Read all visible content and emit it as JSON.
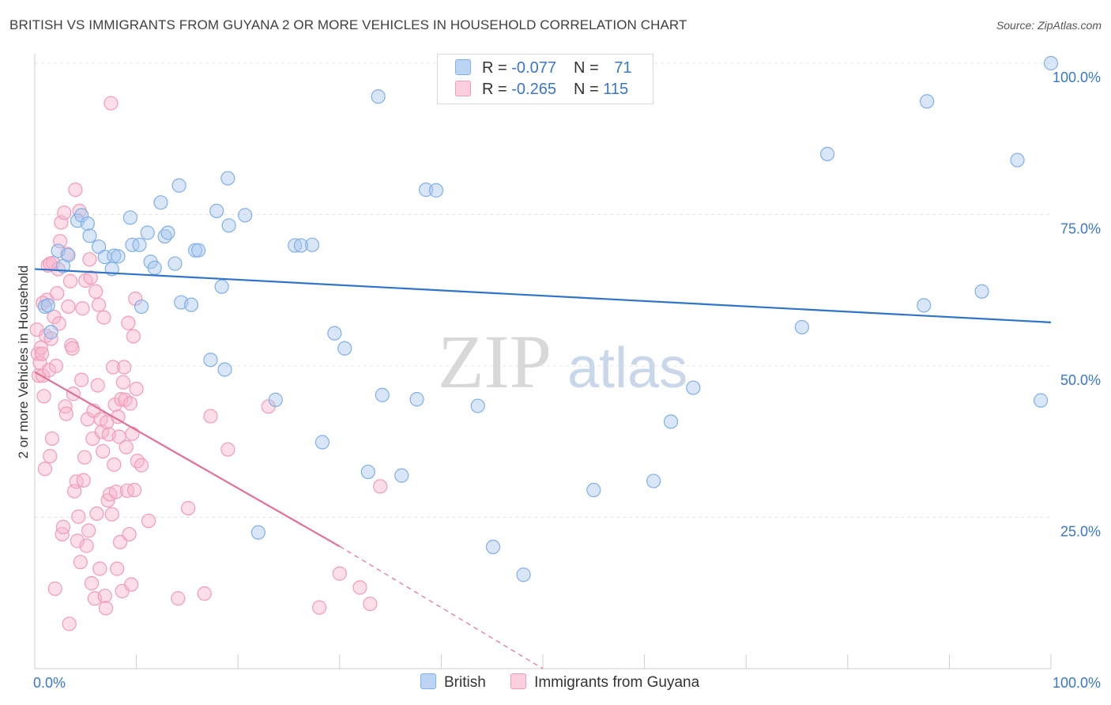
{
  "title": "BRITISH VS IMMIGRANTS FROM GUYANA 2 OR MORE VEHICLES IN HOUSEHOLD CORRELATION CHART",
  "source": "Source: ZipAtlas.com",
  "watermark": {
    "zip": "ZIP",
    "atlas": "atlas"
  },
  "legend": {
    "rows": [
      {
        "r_label": "R = ",
        "r_value": "-0.077",
        "n_label": "N = ",
        "n_value": "71"
      },
      {
        "r_label": "R = ",
        "r_value": "-0.265",
        "n_label": "N = ",
        "n_value": "115"
      }
    ]
  },
  "chart_data": {
    "type": "scatter",
    "title": "BRITISH VS IMMIGRANTS FROM GUYANA 2 OR MORE VEHICLES IN HOUSEHOLD CORRELATION CHART",
    "xlabel": "",
    "ylabel": "2 or more Vehicles in Household",
    "xlim": [
      0,
      100
    ],
    "ylim": [
      0,
      100
    ],
    "x_tick_labels": [
      "0.0%",
      "100.0%"
    ],
    "y_tick_labels": [
      "25.0%",
      "50.0%",
      "75.0%",
      "100.0%"
    ],
    "y_ticks": [
      25,
      50,
      75,
      100
    ],
    "grid": true,
    "legend_position": "bottom",
    "colors": {
      "British": "#7fb0e8",
      "Immigrants from Guyana": "#f29ab8",
      "british_line": "#2f74c8",
      "guyana_line": "#e0709a"
    },
    "series": [
      {
        "name": "British",
        "x": [
          1,
          1.3,
          1.6,
          2.3,
          2.8,
          3.3,
          4.2,
          4.6,
          5.2,
          5.4,
          6.3,
          6.9,
          7.6,
          7.8,
          8.2,
          9.4,
          9.6,
          10.3,
          10.5,
          11.1,
          11.4,
          11.8,
          12.4,
          12.8,
          13.1,
          13.8,
          14.2,
          14.4,
          15.4,
          15.8,
          16.1,
          17.3,
          17.9,
          18.4,
          18.7,
          19.1,
          19,
          20.7,
          23.7,
          25.6,
          26.2,
          27.3,
          28.3,
          29.5,
          30.5,
          32.8,
          34.2,
          36.1,
          37.6,
          38.5,
          39.5,
          40.9,
          42.1,
          43.6,
          45.1,
          48.1,
          55,
          56.4,
          60.9,
          62.6,
          64.8,
          75.5,
          87.5,
          87.8,
          93.2,
          96.7,
          99,
          100,
          78,
          33.8,
          22
        ],
        "y": [
          59.8,
          60,
          55.6,
          69,
          66.5,
          68.3,
          74,
          74.9,
          73.5,
          71.5,
          69.7,
          68,
          66,
          68.2,
          68.1,
          74.5,
          70,
          70,
          59.8,
          72,
          67.2,
          66.2,
          77,
          71.4,
          72,
          66.9,
          79.8,
          60.5,
          60.1,
          69.1,
          69.1,
          51,
          75.6,
          63.1,
          49.4,
          73.2,
          81,
          74.9,
          44.4,
          69.9,
          69.9,
          70,
          37.4,
          55.4,
          52.9,
          32.5,
          45.2,
          31.9,
          44.5,
          79.1,
          79,
          98,
          100,
          43.4,
          20.1,
          15.5,
          29.5,
          100,
          31,
          40.8,
          46.4,
          56.4,
          60,
          93.7,
          62.3,
          84,
          44.3,
          100,
          85,
          94.5,
          22.5
        ]
      },
      {
        "name": "Immigrants from Guyana",
        "x": [
          0.2,
          0.3,
          0.4,
          0.5,
          0.6,
          0.7,
          0.8,
          0.9,
          1,
          1.1,
          1.2,
          1.3,
          1.4,
          1.5,
          1.6,
          1.7,
          1.8,
          1.9,
          2,
          2.1,
          2.2,
          2.3,
          2.4,
          2.5,
          2.6,
          2.7,
          2.8,
          2.9,
          3,
          3.1,
          3.2,
          3.3,
          3.4,
          3.5,
          3.6,
          3.7,
          3.8,
          3.9,
          4,
          4.1,
          4.2,
          4.3,
          4.4,
          4.5,
          4.6,
          4.7,
          4.8,
          4.9,
          5,
          5.1,
          5.2,
          5.3,
          5.4,
          5.5,
          5.6,
          5.7,
          5.8,
          5.9,
          6,
          6.1,
          6.2,
          6.3,
          6.4,
          6.5,
          6.6,
          6.7,
          6.8,
          6.9,
          7,
          7.1,
          7.2,
          7.3,
          7.4,
          7.5,
          7.6,
          7.7,
          7.8,
          7.9,
          8,
          8.1,
          8.2,
          8.3,
          8.4,
          8.5,
          8.6,
          8.7,
          8.8,
          8.9,
          9,
          9.1,
          9.2,
          9.3,
          9.4,
          9.5,
          9.6,
          9.7,
          9.8,
          9.9,
          10,
          10.1,
          10.5,
          11.2,
          14.1,
          15.1,
          16.7,
          17.3,
          19,
          23,
          28,
          30,
          32,
          33,
          34,
          0.8,
          1.5
        ],
        "y": [
          56,
          52,
          48.4,
          50.5,
          53,
          52,
          48.4,
          45,
          33,
          55,
          60.9,
          66.6,
          49.3,
          35.1,
          54.5,
          38,
          67,
          58.1,
          13.2,
          50,
          62,
          66,
          57,
          70.6,
          73.7,
          22.2,
          23.4,
          75.3,
          43.3,
          42.1,
          68.5,
          59.8,
          7.4,
          64,
          53.4,
          52.9,
          45.4,
          29.3,
          79.1,
          30.9,
          21.1,
          25.1,
          75.6,
          17.6,
          47.7,
          59.5,
          31.1,
          34.9,
          64.1,
          20.3,
          41.2,
          22.8,
          67.6,
          64.6,
          14.1,
          38,
          42.6,
          11.6,
          62.3,
          25.6,
          46.8,
          60.1,
          16.5,
          41.2,
          39.1,
          35.9,
          58,
          12,
          10,
          40.7,
          27.8,
          38.7,
          28.8,
          93.4,
          25.5,
          49.8,
          33.7,
          43.6,
          29.2,
          16.5,
          41.6,
          38.3,
          20.9,
          44.5,
          12.8,
          47.3,
          49.8,
          44.4,
          36.6,
          29.4,
          57.1,
          22.2,
          43.8,
          13.9,
          38.8,
          54.9,
          29.5,
          61.1,
          46.2,
          34.3,
          33.6,
          24.4,
          11.6,
          26.5,
          12.4,
          41.7,
          36.2,
          43.3,
          10.1,
          15.7,
          13.4,
          10.7,
          30.1,
          60.4,
          66.9
        ]
      }
    ],
    "trend_lines": [
      {
        "series": "British",
        "x": [
          0,
          100
        ],
        "y": [
          66,
          57.2
        ]
      },
      {
        "series": "Immigrants from Guyana",
        "x": [
          0,
          30
        ],
        "y": [
          49,
          20.2
        ]
      },
      {
        "series": "Immigrants from Guyana (extrapolated)",
        "x": [
          30,
          50
        ],
        "y": [
          20.2,
          0
        ]
      }
    ]
  }
}
